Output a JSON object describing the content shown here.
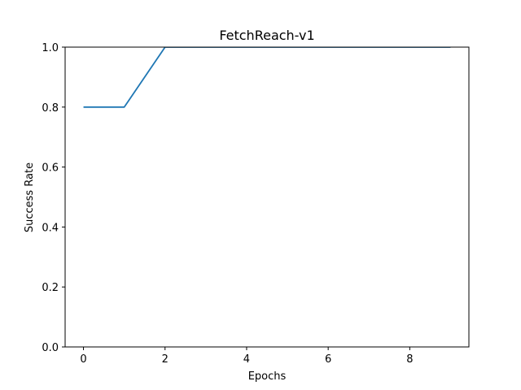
{
  "chart_data": {
    "type": "line",
    "title": "FetchReach-v1",
    "xlabel": "Epochs",
    "ylabel": "Success Rate",
    "x": [
      0,
      1,
      2,
      3,
      4,
      5,
      6,
      7,
      8,
      9
    ],
    "series": [
      {
        "values": [
          0.8,
          0.8,
          1.0,
          1.0,
          1.0,
          1.0,
          1.0,
          1.0,
          1.0,
          1.0
        ],
        "color": "#1f77b4"
      }
    ],
    "xlim": [
      -0.45,
      9.45
    ],
    "ylim": [
      0.0,
      1.0
    ],
    "xticks": [
      0,
      2,
      4,
      6,
      8
    ],
    "yticks": [
      0.0,
      0.2,
      0.4,
      0.6,
      0.8,
      1.0
    ],
    "xtick_labels": [
      "0",
      "2",
      "4",
      "6",
      "8"
    ],
    "ytick_labels": [
      "0.0",
      "0.2",
      "0.4",
      "0.6",
      "0.8",
      "1.0"
    ],
    "grid": false,
    "legend": "none"
  }
}
